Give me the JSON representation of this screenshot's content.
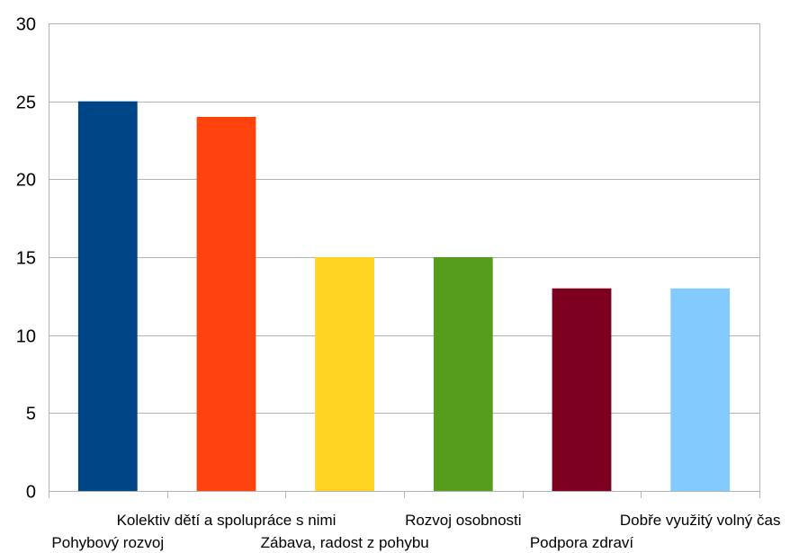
{
  "chart_data": {
    "type": "bar",
    "title": "",
    "xlabel": "",
    "ylabel": "",
    "categories": [
      "Pohybový rozvoj",
      "Kolektiv dětí a spolupráce s nimi",
      "Zábava, radost z pohybu",
      "Rozvoj osobnosti",
      "Podpora zdraví",
      "Dobře využitý volný čas"
    ],
    "values": [
      25,
      24,
      15,
      15,
      13,
      13
    ],
    "colors": [
      "#004586",
      "#ff420e",
      "#ffd320",
      "#579d1c",
      "#7e0021",
      "#83caff"
    ],
    "ylim": [
      0,
      30
    ],
    "yticks": [
      0,
      5,
      10,
      15,
      20,
      25,
      30
    ],
    "grid": true,
    "legend": false
  }
}
